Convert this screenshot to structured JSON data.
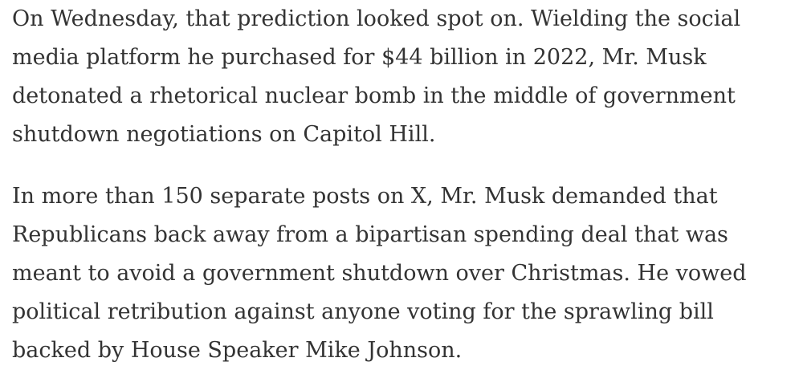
{
  "paragraphs": [
    {
      "lines": [
        "On Wednesday, that prediction looked spot on. Wielding the social",
        "media platform he purchased for $44 billion in 2022, Mr. Musk",
        "detonated a rhetorical nuclear bomb in the middle of government",
        "shutdown negotiations on Capitol Hill."
      ]
    },
    {
      "lines": [
        "In more than 150 separate posts on X, Mr. Musk demanded that",
        "Republicans back away from a bipartisan spending deal that was",
        "meant to avoid a government shutdown over Christmas. He vowed",
        "political retribution against anyone voting for the sprawling bill",
        "backed by House Speaker Mike Johnson."
      ]
    }
  ]
}
